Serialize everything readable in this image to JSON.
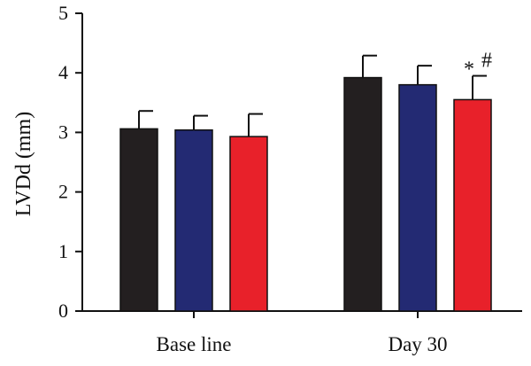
{
  "chart_data": {
    "type": "bar",
    "ylabel": "LVDd (mm)",
    "ylim": [
      0,
      5
    ],
    "yticks": [
      "0",
      "1",
      "2",
      "3",
      "4",
      "5"
    ],
    "categories": [
      "Base line",
      "Day 30"
    ],
    "series": [
      {
        "color": "#231f20",
        "values": [
          3.06,
          3.92
        ],
        "errors": [
          0.3,
          0.37
        ]
      },
      {
        "color": "#232a73",
        "values": [
          3.04,
          3.8
        ],
        "errors": [
          0.24,
          0.32
        ]
      },
      {
        "color": "#e8212a",
        "values": [
          2.93,
          3.55
        ],
        "errors": [
          0.38,
          0.4
        ]
      }
    ],
    "annotations": [
      {
        "category": 1,
        "series": 2,
        "text": "*",
        "superscript": "#"
      }
    ],
    "grid": false
  }
}
